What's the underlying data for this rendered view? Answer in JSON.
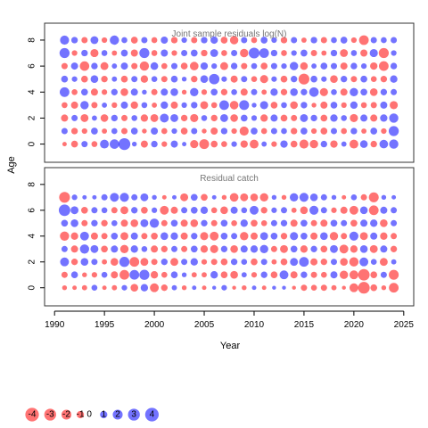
{
  "chart_data": {
    "type": "scatter",
    "subtype": "bubble",
    "xlabel": "Year",
    "ylabel": "Age",
    "shared_x_axis": true,
    "x_ticks": [
      1990,
      1995,
      2000,
      2005,
      2010,
      2015,
      2020,
      2025
    ],
    "y_ticks": [
      0,
      2,
      4,
      6,
      8
    ],
    "xlim": [
      1989,
      2026
    ],
    "ylim": [
      -1.4,
      9.3
    ],
    "years": [
      1991,
      1992,
      1993,
      1994,
      1995,
      1996,
      1997,
      1998,
      1999,
      2000,
      2001,
      2002,
      2003,
      2004,
      2005,
      2006,
      2007,
      2008,
      2009,
      2010,
      2011,
      2012,
      2013,
      2014,
      2015,
      2016,
      2017,
      2018,
      2019,
      2020,
      2021,
      2022,
      2023,
      2024
    ],
    "colors": {
      "positive": "#0000FF",
      "negative": "#FF0000",
      "opacity": 0.55,
      "frame": "#333333",
      "panel_title": "#777777"
    },
    "panels": [
      {
        "title": "Joint sample residuals log(N)",
        "ages": [
          0,
          1,
          2,
          3,
          4,
          5,
          6,
          7,
          8
        ],
        "values": [
          [
            -0.5,
            -1.2,
            1.0,
            -0.9,
            2.0,
            2.3,
            3.6,
            0.6,
            -1.3,
            1.1,
            -0.8,
            1.3,
            0.5,
            -1.7,
            -2.5,
            -1.2,
            -0.9,
            0.8,
            -1.4,
            -2.0,
            0.7,
            -0.8,
            1.4,
            -1.2,
            -2.1,
            -1.8,
            1.1,
            -1.4,
            0.7,
            -2.0,
            1.5,
            -1.1,
            1.9,
            2.2
          ],
          [
            1.0,
            -1.1,
            -0.8,
            1.2,
            -0.7,
            0.9,
            -1.0,
            1.2,
            -0.6,
            1.3,
            -0.9,
            0.8,
            -1.2,
            1.0,
            -0.6,
            -1.3,
            1.1,
            -0.8,
            -2.1,
            1.2,
            -0.9,
            1.0,
            0.9,
            -1.1,
            1.2,
            -0.8,
            -1.2,
            1.0,
            -0.9,
            1.1,
            -0.7,
            1.2,
            -0.8,
            2.6
          ],
          [
            -1.3,
            1.0,
            -1.6,
            0.7,
            -1.5,
            1.1,
            -1.0,
            0.9,
            -1.4,
            -1.6,
            2.0,
            1.6,
            -1.1,
            -1.7,
            0.9,
            -1.1,
            1.6,
            -1.5,
            1.2,
            0.8,
            -1.4,
            1.3,
            -1.2,
            -1.0,
            1.6,
            1.1,
            -1.2,
            1.4,
            0.9,
            -1.7,
            1.3,
            -1.3,
            1.4,
            2.2
          ],
          [
            -0.9,
            -1.3,
            1.8,
            -1.0,
            0.7,
            -0.8,
            1.3,
            -1.4,
            0.9,
            -0.7,
            1.4,
            -1.3,
            0.8,
            1.1,
            -1.6,
            -0.9,
            2.4,
            -1.9,
            2.5,
            0.6,
            1.7,
            -1.2,
            0.9,
            -1.5,
            1.1,
            -0.6,
            -1.3,
            1.2,
            -0.8,
            1.4,
            -0.9,
            -1.0,
            1.3,
            -1.7
          ],
          [
            2.4,
            -0.9,
            1.2,
            -1.3,
            -0.8,
            1.1,
            -1.5,
            1.3,
            0.6,
            -1.0,
            1.3,
            1.5,
            -0.6,
            1.8,
            -0.8,
            1.2,
            -1.1,
            0.9,
            -1.3,
            1.0,
            -0.7,
            1.4,
            -1.1,
            1.5,
            1.1,
            2.3,
            -1.7,
            0.9,
            -1.3,
            1.8,
            1.2,
            -1.5,
            1.1,
            1.0
          ],
          [
            1.2,
            0.8,
            -1.2,
            1.5,
            -1.1,
            0.7,
            -1.2,
            1.0,
            -1.4,
            0.9,
            -1.0,
            1.2,
            0.6,
            -1.1,
            1.5,
            2.8,
            0.8,
            -1.3,
            1.0,
            -0.9,
            -1.7,
            0.8,
            -1.2,
            1.1,
            -3.0,
            1.2,
            0.8,
            -1.5,
            1.1,
            -1.0,
            1.2,
            -0.9,
            -1.1,
            1.4
          ],
          [
            -1.0,
            1.3,
            -2.3,
            1.1,
            -1.6,
            0.7,
            1.3,
            -1.0,
            -2.2,
            1.5,
            -0.9,
            1.0,
            -1.2,
            -1.9,
            1.4,
            0.8,
            -1.6,
            1.1,
            -1.0,
            0.9,
            -1.2,
            1.0,
            0.8,
            1.8,
            -1.5,
            0.7,
            1.2,
            1.0,
            -1.3,
            1.1,
            0.8,
            -1.4,
            -2.4,
            1.1
          ],
          [
            2.6,
            -0.8,
            1.1,
            -1.7,
            0.9,
            -0.7,
            1.2,
            -1.3,
            2.6,
            -0.9,
            1.3,
            -0.8,
            1.0,
            1.2,
            -1.1,
            1.6,
            -0.9,
            1.0,
            -1.8,
            3.0,
            2.4,
            1.1,
            -0.9,
            0.8,
            1.2,
            -1.0,
            -0.7,
            1.1,
            -1.6,
            0.9,
            -1.3,
            1.7,
            -2.6,
            0.8
          ],
          [
            2.1,
            1.1,
            -1.0,
            1.6,
            -0.8,
            2.2,
            0.9,
            -1.2,
            1.0,
            -0.9,
            1.3,
            -1.1,
            0.8,
            -1.0,
            1.1,
            1.4,
            -1.2,
            -1.8,
            1.0,
            -0.9,
            1.2,
            0.8,
            -1.1,
            1.0,
            -0.7,
            1.1,
            -1.0,
            0.9,
            1.2,
            -0.8,
            -2.4,
            1.0,
            0.9,
            1.0
          ]
        ]
      },
      {
        "title": "Residual catch",
        "ages": [
          0,
          1,
          2,
          3,
          4,
          5,
          6,
          7
        ],
        "values": [
          [
            -0.6,
            -0.5,
            -0.7,
            0.9,
            -0.5,
            -0.7,
            0.8,
            -1.5,
            1.4,
            -2.0,
            -1.1,
            0.7,
            -0.6,
            0.5,
            -0.5,
            0.4,
            0.8,
            -0.4,
            -0.6,
            0.5,
            -0.5,
            0.4,
            0.4,
            -0.4,
            -1.0,
            -0.9,
            -1.0,
            -0.7,
            -0.4,
            -2.0,
            -3.5,
            -1.2,
            -0.6,
            -2.4
          ],
          [
            -1.0,
            1.2,
            -0.6,
            -0.8,
            0.9,
            -1.3,
            -2.4,
            2.4,
            2.6,
            -1.4,
            -0.9,
            1.2,
            0.6,
            -0.7,
            -0.7,
            1.4,
            -1.2,
            -1.5,
            0.7,
            -0.8,
            1.1,
            -1.2,
            2.0,
            -1.3,
            1.1,
            -1.0,
            -0.9,
            1.3,
            -1.8,
            -2.0,
            -3.4,
            -1.2,
            1.0,
            -2.5
          ],
          [
            2.0,
            -1.1,
            1.5,
            1.0,
            -0.7,
            -1.5,
            2.6,
            -2.4,
            -1.6,
            -1.0,
            1.1,
            -1.6,
            1.0,
            1.4,
            -0.8,
            -1.0,
            -1.2,
            1.1,
            0.9,
            -1.2,
            1.0,
            -0.7,
            -1.2,
            1.6,
            2.4,
            -1.3,
            -1.1,
            1.0,
            -1.5,
            -2.2,
            2.0,
            0.9,
            -1.6,
            0.7
          ],
          [
            1.0,
            -1.3,
            2.2,
            1.6,
            -1.2,
            1.3,
            -1.8,
            1.4,
            0.9,
            -1.3,
            -1.1,
            1.0,
            -1.0,
            1.2,
            -1.4,
            -1.7,
            1.1,
            -1.5,
            1.3,
            1.4,
            1.8,
            -1.0,
            -1.6,
            1.2,
            -1.4,
            1.1,
            -1.2,
            1.6,
            -2.0,
            -1.4,
            1.5,
            -1.6,
            1.3,
            -1.1
          ],
          [
            -2.2,
            -1.4,
            2.0,
            -1.3,
            -1.0,
            1.2,
            -1.6,
            1.3,
            -1.0,
            -1.2,
            1.5,
            1.4,
            -1.3,
            1.1,
            -1.7,
            -2.0,
            1.2,
            1.0,
            -1.8,
            -1.3,
            1.6,
            1.2,
            -1.1,
            1.7,
            1.2,
            -1.3,
            1.5,
            -1.8,
            -1.0,
            2.1,
            -1.6,
            1.3,
            -1.4,
            -1.0
          ],
          [
            1.2,
            1.5,
            -1.0,
            1.1,
            -1.1,
            0.9,
            -1.3,
            -1.5,
            1.6,
            2.2,
            -1.0,
            1.2,
            -1.3,
            -1.5,
            1.1,
            -1.0,
            1.2,
            -0.9,
            1.4,
            -1.2,
            -0.9,
            1.0,
            1.1,
            -1.3,
            1.2,
            -1.0,
            -1.3,
            1.2,
            1.0,
            -1.2,
            1.3,
            1.4,
            -1.5,
            1.0
          ],
          [
            3.4,
            1.6,
            -1.2,
            1.0,
            0.9,
            -1.0,
            -1.6,
            1.1,
            -1.2,
            0.8,
            -2.0,
            -1.3,
            1.0,
            1.2,
            1.4,
            -0.9,
            -1.5,
            1.3,
            0.9,
            2.0,
            -1.1,
            0.8,
            1.0,
            -0.7,
            -1.5,
            2.1,
            1.0,
            -0.8,
            -1.3,
            -2.0,
            1.5,
            -2.4,
            1.3,
            1.0
          ],
          [
            -3.0,
            0.8,
            0.5,
            0.5,
            1.0,
            2.0,
            2.1,
            1.0,
            1.6,
            0.6,
            -0.5,
            0.5,
            -1.6,
            1.2,
            -1.2,
            0.5,
            -0.6,
            -1.9,
            -1.6,
            -1.5,
            -1.8,
            0.6,
            -0.6,
            1.8,
            2.1,
            1.5,
            1.0,
            0.6,
            -0.5,
            0.9,
            -1.0,
            -2.5,
            0.6,
            0.5
          ]
        ]
      }
    ],
    "legend": {
      "position": "bottom-left",
      "labels": [
        "-4",
        "-3",
        "-2",
        "-1",
        "0",
        "1",
        "2",
        "3",
        "4"
      ],
      "values": [
        -4,
        -3,
        -2,
        -1,
        0,
        1,
        2,
        3,
        4
      ]
    }
  }
}
